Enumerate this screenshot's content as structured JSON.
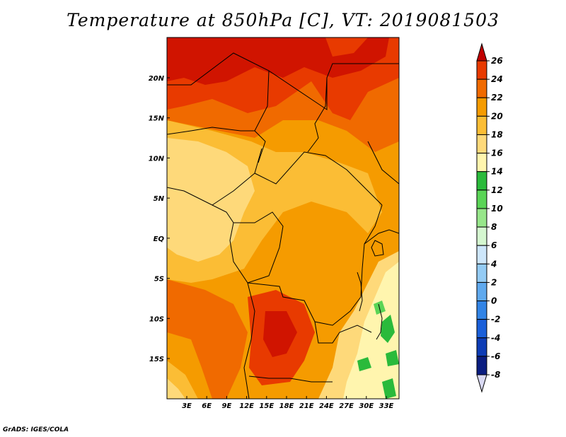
{
  "title": "Temperature at 850hPa [C], VT: 2019081503",
  "credit": "GrADS: IGES/COLA",
  "map": {
    "lon_labels": [
      "3E",
      "6E",
      "9E",
      "12E",
      "15E",
      "18E",
      "21E",
      "24E",
      "27E",
      "30E",
      "33E"
    ],
    "lat_labels": [
      "20N",
      "15N",
      "10N",
      "5N",
      "EQ",
      "5S",
      "10S",
      "15S"
    ],
    "lon_values": [
      3,
      6,
      9,
      12,
      15,
      18,
      21,
      24,
      27,
      30,
      33
    ],
    "lat_values": [
      20,
      15,
      10,
      5,
      0,
      -5,
      -10,
      -15
    ]
  },
  "colorbar": {
    "labels": [
      "26",
      "24",
      "22",
      "20",
      "18",
      "16",
      "14",
      "12",
      "10",
      "8",
      "6",
      "4",
      "2",
      "0",
      "-2",
      "-4",
      "-6",
      "-8"
    ],
    "colors": [
      "#d01400",
      "#e83a00",
      "#f06a00",
      "#f59b00",
      "#fbbd35",
      "#fed97a",
      "#fff5ae",
      "#2aba3b",
      "#5ad456",
      "#97e68a",
      "#d5f7d0",
      "#cde6fa",
      "#94cbf4",
      "#5fa9ee",
      "#3284e6",
      "#1a5fd9",
      "#0d3cb5",
      "#0a1d80",
      "#061266"
    ],
    "top_arrow_color": "#c00000",
    "bottom_arrow_color": "#d9d9f3"
  }
}
